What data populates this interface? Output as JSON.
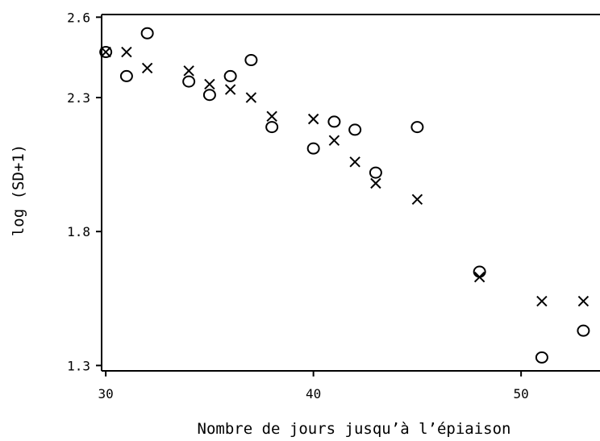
{
  "chart_data": {
    "type": "scatter",
    "title": "",
    "xlabel": "Nombre de jours jusqu’à l’épiaison",
    "ylabel": "log (SD+1)",
    "xlim": [
      29.8,
      53.8
    ],
    "ylim": [
      1.28,
      2.61
    ],
    "xticks": [
      30,
      40,
      50
    ],
    "xtick_labels": [
      "30",
      "40",
      "50"
    ],
    "yticks": [
      1.3,
      1.8,
      2.3,
      2.6
    ],
    "ytick_labels": [
      "1.3",
      "1.8",
      "2.3",
      "2.6"
    ],
    "grid": false,
    "legend": false,
    "series": [
      {
        "marker": "o",
        "x": [
          30,
          31,
          32,
          34,
          35,
          36,
          37,
          38,
          40,
          41,
          42,
          43,
          45,
          48,
          51,
          53
        ],
        "y": [
          2.47,
          2.38,
          2.54,
          2.36,
          2.31,
          2.38,
          2.44,
          2.19,
          2.11,
          2.21,
          2.18,
          2.02,
          2.19,
          1.65,
          1.33,
          1.43
        ]
      },
      {
        "marker": "x",
        "x": [
          30,
          31,
          32,
          34,
          35,
          36,
          37,
          38,
          40,
          41,
          42,
          43,
          45,
          48,
          51,
          53
        ],
        "y": [
          2.47,
          2.47,
          2.41,
          2.4,
          2.35,
          2.33,
          2.3,
          2.23,
          2.22,
          2.14,
          2.06,
          1.98,
          1.92,
          1.63,
          1.54,
          1.54
        ]
      }
    ]
  }
}
